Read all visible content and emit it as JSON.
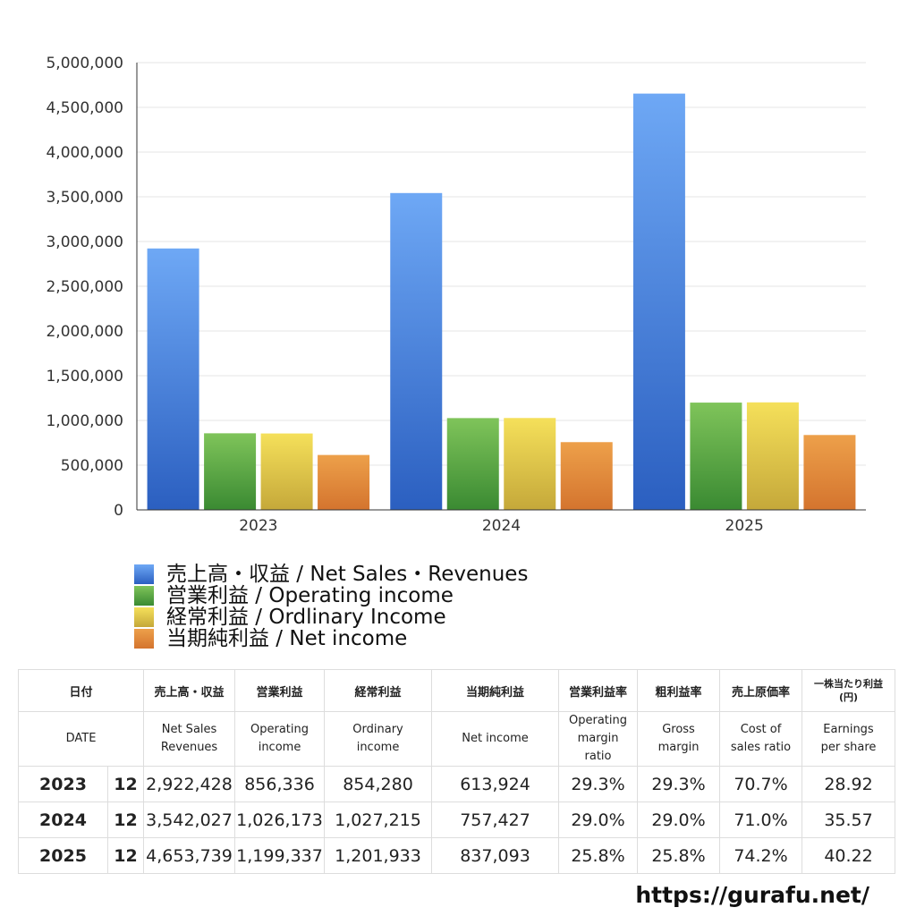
{
  "chart_data": {
    "type": "bar",
    "categories": [
      "2023",
      "2024",
      "2025"
    ],
    "series": [
      {
        "name": "売上高・収益 / Net Sales・Revenues",
        "values": [
          2922428,
          3542027,
          4653739
        ],
        "color_top": "#6ea8f5",
        "color_bottom": "#2b5fc0"
      },
      {
        "name": "営業利益 / Operating income",
        "values": [
          856336,
          1026173,
          1199337
        ],
        "color_top": "#7fc45a",
        "color_bottom": "#3a8a32"
      },
      {
        "name": "経常利益 / Ordlinary Income",
        "values": [
          854280,
          1027215,
          1201933
        ],
        "color_top": "#f5e05a",
        "color_bottom": "#c5a83a"
      },
      {
        "name": "当期純利益 / Net income",
        "values": [
          613924,
          757427,
          837093
        ],
        "color_top": "#eda04a",
        "color_bottom": "#d4742e"
      }
    ],
    "yticks": [
      "0",
      "500,000",
      "1,000,000",
      "1,500,000",
      "2,000,000",
      "2,500,000",
      "3,000,000",
      "3,500,000",
      "4,000,000",
      "4,500,000",
      "5,000,000"
    ],
    "ylim": [
      0,
      5000000
    ],
    "grid": true,
    "legend_position": "bottom"
  },
  "table": {
    "header_jp": [
      "日付",
      "売上高・収益",
      "営業利益",
      "経常利益",
      "当期純利益",
      "営業利益率",
      "粗利益率",
      "売上原価率",
      "一株当たり利益",
      "(円)"
    ],
    "header_en": [
      "DATE",
      "Net Sales",
      "Revenues",
      "Operating",
      "income",
      "Ordinary",
      "income",
      "Net income",
      "Operating",
      "margin",
      "ratio",
      "Gross",
      "margin",
      "Cost of",
      "sales ratio",
      "Earnings",
      "per share"
    ],
    "rows": [
      {
        "year": "2023",
        "month": "12",
        "sales": "2,922,428",
        "op": "856,336",
        "ord": "854,280",
        "net": "613,924",
        "opm": "29.3%",
        "gm": "29.3%",
        "cogs": "70.7%",
        "eps": "28.92"
      },
      {
        "year": "2024",
        "month": "12",
        "sales": "3,542,027",
        "op": "1,026,173",
        "ord": "1,027,215",
        "net": "757,427",
        "opm": "29.0%",
        "gm": "29.0%",
        "cogs": "71.0%",
        "eps": "35.57"
      },
      {
        "year": "2025",
        "month": "12",
        "sales": "4,653,739",
        "op": "1,199,337",
        "ord": "1,201,933",
        "net": "837,093",
        "opm": "25.8%",
        "gm": "25.8%",
        "cogs": "74.2%",
        "eps": "40.22"
      }
    ]
  },
  "site_url": "https://gurafu.net/"
}
